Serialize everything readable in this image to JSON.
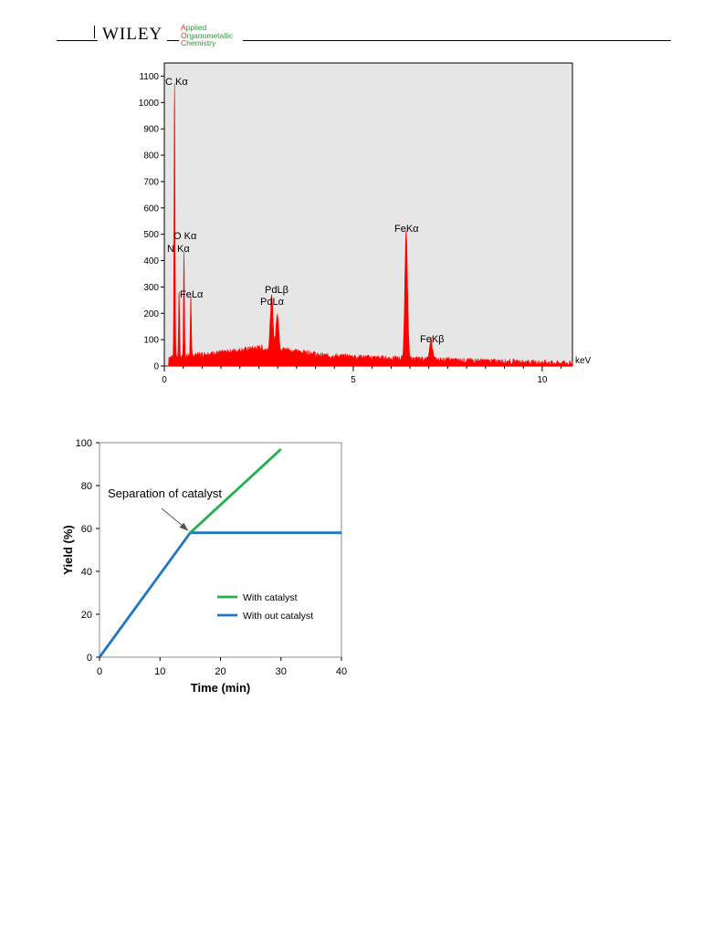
{
  "header": {
    "publisher": "WILEY",
    "journal_lines": [
      {
        "initial": "A",
        "rest": "pplied"
      },
      {
        "initial": "O",
        "rest": "rganometallic"
      },
      {
        "initial": "C",
        "rest": "hemistry"
      }
    ],
    "colors": {
      "initial": "#d8332b",
      "text": "#2a9a3c"
    }
  },
  "chart_data": [
    {
      "type": "area",
      "x_unit_label": "keV",
      "xlim": [
        0,
        10.8
      ],
      "ylim": [
        0,
        1150
      ],
      "x_ticks": [
        0,
        5,
        10
      ],
      "y_ticks": [
        0,
        100,
        200,
        300,
        400,
        500,
        600,
        700,
        800,
        900,
        1000,
        1100
      ],
      "color": "#ff0000",
      "background": "#e6e6e6",
      "peaks": [
        {
          "label": "C Kα",
          "x": 0.27,
          "y": 1055
        },
        {
          "label": "N Kα",
          "x": 0.39,
          "y": 255
        },
        {
          "label": "O Kα",
          "x": 0.52,
          "y": 395
        },
        {
          "label": "FeLα",
          "x": 0.7,
          "y": 230
        },
        {
          "label": "PdLα",
          "x": 2.84,
          "y": 200
        },
        {
          "label": "PdLβ",
          "x": 2.99,
          "y": 140
        },
        {
          "label": "FeKα",
          "x": 6.4,
          "y": 485
        },
        {
          "label": "FeKβ",
          "x": 7.06,
          "y": 75
        }
      ],
      "annotations": [
        "C Kα",
        "O Kα",
        "N Kα",
        "FeLα",
        "PdLβ",
        "PdLα",
        "FeKα",
        "FeKβ"
      ]
    },
    {
      "type": "line",
      "xlabel": "Time (min)",
      "ylabel": "Yield (%)",
      "xlim": [
        0,
        40
      ],
      "ylim": [
        0,
        100
      ],
      "x_ticks": [
        0,
        10,
        20,
        30,
        40
      ],
      "y_ticks": [
        0,
        20,
        40,
        60,
        80,
        100
      ],
      "grid": false,
      "legend_position": "center-right",
      "annotation": "Separation of catalyst",
      "series": [
        {
          "name": "With catalyst",
          "color": "#22b14c",
          "x": [
            15,
            30
          ],
          "y": [
            58,
            97
          ]
        },
        {
          "name": "With out catalyst",
          "color": "#1f77c4",
          "x": [
            0,
            15,
            40
          ],
          "y": [
            0,
            58,
            58
          ]
        }
      ]
    }
  ]
}
